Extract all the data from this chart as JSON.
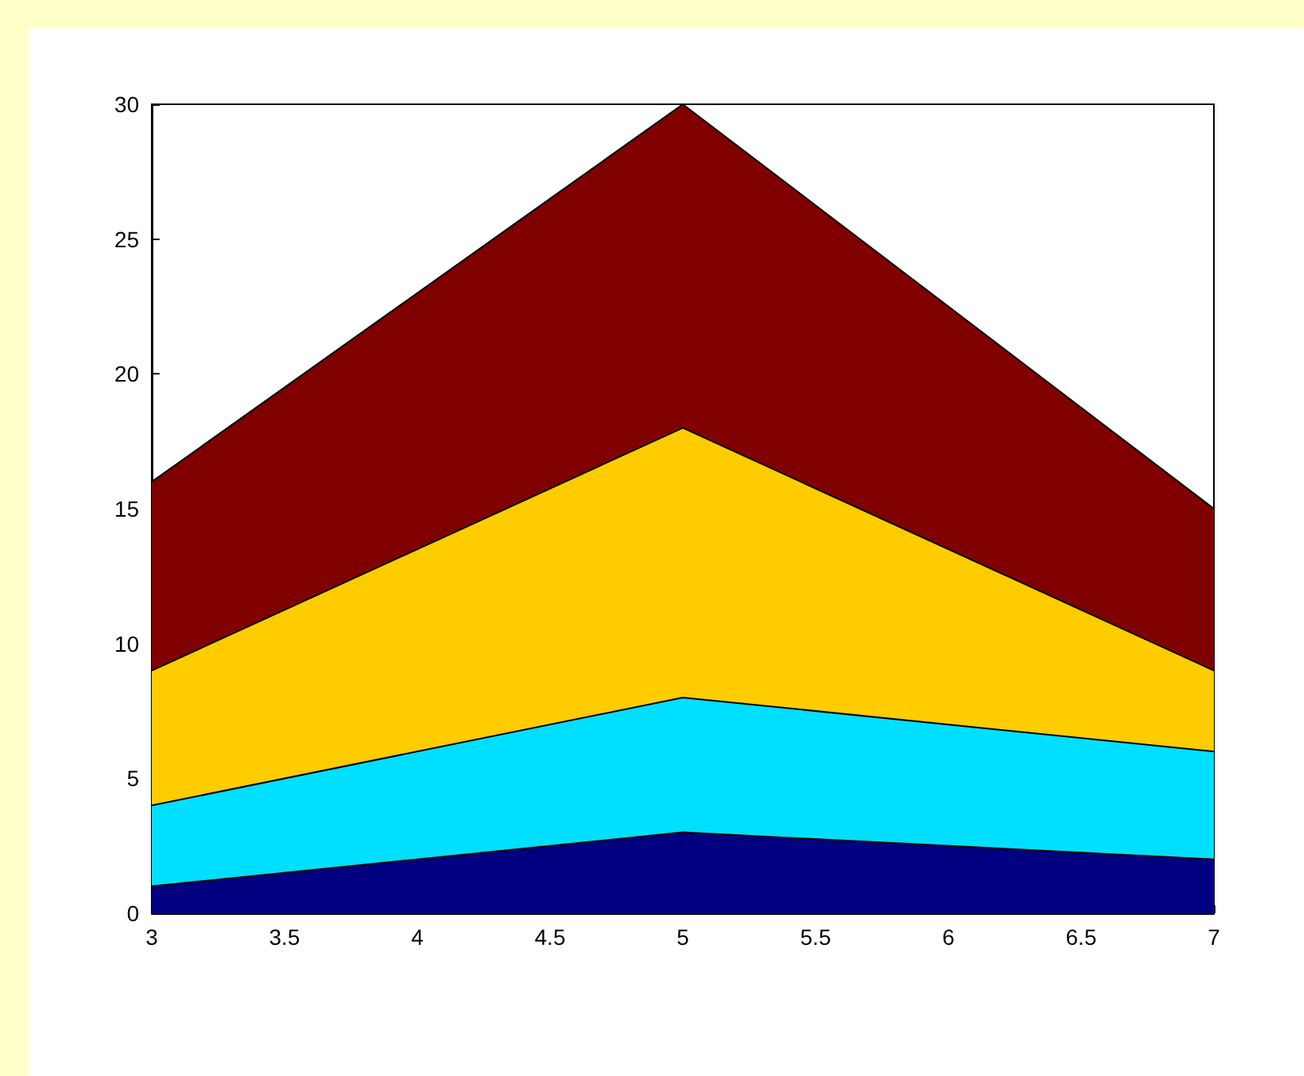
{
  "chart_data": {
    "type": "area",
    "stacked": true,
    "x": [
      3,
      5,
      7
    ],
    "series": [
      {
        "color": "#000080",
        "values": [
          1,
          3,
          2
        ]
      },
      {
        "color": "#00dfff",
        "values": [
          3,
          5,
          4
        ]
      },
      {
        "color": "#ffcc00",
        "values": [
          5,
          10,
          3
        ]
      },
      {
        "color": "#800000",
        "values": [
          7,
          12,
          6
        ]
      }
    ],
    "xlim": [
      3,
      7
    ],
    "xticks": [
      3,
      3.5,
      4,
      4.5,
      5,
      5.5,
      6,
      6.5,
      7
    ],
    "ylim": [
      0,
      30
    ],
    "yticks": [
      0,
      5,
      10,
      15,
      20,
      25,
      30
    ],
    "grid": false
  }
}
